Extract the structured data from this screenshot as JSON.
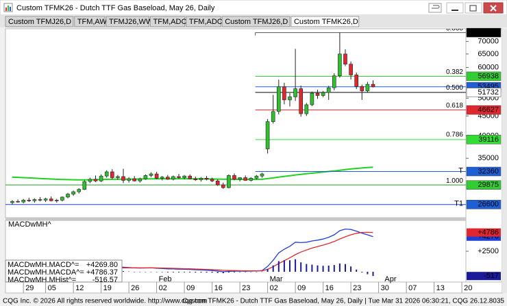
{
  "window": {
    "title": "Custom TFMK26 - Dutch TTF Gas Baseload, May 26, Daily",
    "tabs": [
      "Custom TFMJ26,D",
      "TFM,AW",
      "TFMJ26,WW",
      "TFM,ADC",
      "TFM,ADC",
      "Custom TFMJ26,D",
      "Custom TFMK26,D"
    ],
    "active_tab": 6
  },
  "status": {
    "left": "CQG Inc. © 2026 All rights reserved worldwide. http://www.cqg.com",
    "right": "Custom TFMK26 - Dutch TTF Gas Baseload, May 26, Daily | Tue Mar 31 2026 06:30:21, CQG 26.12.8035"
  },
  "chart_data": [
    {
      "type": "candlestick",
      "log": true,
      "x": [
        "Dec 23",
        "Dec 24",
        "Dec 29",
        "Dec 30",
        "Dec 31",
        "Jan 02",
        "Jan 05",
        "Jan 06",
        "Jan 07",
        "Jan 08",
        "Jan 09",
        "Jan 12",
        "Jan 13",
        "Jan 14",
        "Jan 15",
        "Jan 16",
        "Jan 19",
        "Jan 20",
        "Jan 21",
        "Jan 22",
        "Jan 23",
        "Jan 26",
        "Jan 27",
        "Jan 28",
        "Jan 29",
        "Jan 30",
        "Feb 02",
        "Feb 03",
        "Feb 04",
        "Feb 05",
        "Feb 06",
        "Feb 09",
        "Feb 10",
        "Feb 11",
        "Feb 12",
        "Feb 13",
        "Feb 16",
        "Feb 17",
        "Feb 18",
        "Feb 19",
        "Feb 20",
        "Feb 23",
        "Feb 24",
        "Feb 25",
        "Feb 26",
        "Feb 27",
        "Mar 02",
        "Mar 03",
        "Mar 04",
        "Mar 05",
        "Mar 06",
        "Mar 09",
        "Mar 10",
        "Mar 11",
        "Mar 12",
        "Mar 13",
        "Mar 16",
        "Mar 17",
        "Mar 18",
        "Mar 19",
        "Mar 20",
        "Mar 23",
        "Mar 24",
        "Mar 25",
        "Mar 26",
        "Mar 27"
      ],
      "open": [
        26900,
        27100,
        27000,
        27300,
        27200,
        27400,
        27300,
        27500,
        27200,
        27300,
        27800,
        28300,
        28700,
        29100,
        30500,
        30900,
        30600,
        31500,
        32300,
        31200,
        31400,
        30700,
        31000,
        30600,
        31000,
        31600,
        31900,
        31100,
        31300,
        30900,
        31400,
        31200,
        31500,
        31000,
        30800,
        31100,
        30900,
        30600,
        29900,
        29400,
        31600,
        30900,
        31200,
        30700,
        31100,
        31500,
        37000,
        43500,
        46200,
        53500,
        49500,
        50400,
        52900,
        45600,
        48100,
        51500,
        50800,
        51700,
        53200,
        57100,
        65000,
        61200,
        57400,
        53600,
        52200,
        54300
      ],
      "high": [
        27300,
        27400,
        27500,
        27700,
        27600,
        27800,
        27700,
        27900,
        27500,
        27900,
        28500,
        28900,
        29300,
        30700,
        31200,
        31600,
        31800,
        32600,
        32800,
        31700,
        32900,
        31300,
        31500,
        31200,
        31800,
        32200,
        32300,
        31500,
        31700,
        31600,
        31900,
        31700,
        31800,
        31400,
        31300,
        31500,
        31200,
        30900,
        30300,
        31800,
        32000,
        31300,
        31600,
        31300,
        31700,
        32100,
        44200,
        51000,
        55800,
        54800,
        51500,
        67000,
        53900,
        48600,
        52000,
        52600,
        52200,
        53800,
        58000,
        73790,
        66800,
        62200,
        58200,
        54200,
        55100,
        55600
      ],
      "low": [
        26600,
        26900,
        26800,
        27000,
        26900,
        27100,
        27000,
        27100,
        26900,
        27100,
        27600,
        28000,
        28400,
        29000,
        30200,
        30400,
        30400,
        31200,
        30900,
        30800,
        30200,
        30300,
        30500,
        30300,
        30800,
        31300,
        30900,
        30700,
        30800,
        30700,
        31000,
        30900,
        30900,
        30600,
        30500,
        30700,
        30400,
        29700,
        29200,
        29300,
        30700,
        30500,
        30600,
        30500,
        30900,
        31200,
        36000,
        43000,
        45400,
        48200,
        47600,
        49200,
        44800,
        45000,
        47700,
        49800,
        50300,
        49500,
        52400,
        56500,
        60500,
        55900,
        52800,
        49500,
        51800,
        53300
      ],
      "close": [
        27100,
        27000,
        27300,
        27200,
        27400,
        27300,
        27500,
        27200,
        27300,
        27800,
        28300,
        28700,
        29100,
        30500,
        30900,
        30600,
        31500,
        32300,
        31200,
        31400,
        30700,
        31000,
        30600,
        31000,
        31600,
        31900,
        31100,
        31300,
        30900,
        31400,
        31200,
        31500,
        31000,
        30800,
        31100,
        30900,
        30600,
        29900,
        29400,
        31600,
        30900,
        31200,
        30700,
        31100,
        31500,
        31900,
        43500,
        46200,
        53500,
        49500,
        50400,
        52900,
        45600,
        48100,
        51500,
        50800,
        51700,
        53200,
        57100,
        65000,
        61200,
        57400,
        53600,
        52200,
        54300,
        53500
      ],
      "up_color": "#2fbf2f",
      "down_color": "#e0262e",
      "overlays": [
        {
          "type": "line",
          "color": "#1ed21e",
          "values": [
            31300,
            31250,
            31200,
            31150,
            31100,
            31050,
            31000,
            30950,
            30900,
            30860,
            30830,
            30810,
            30800,
            30800,
            30810,
            30830,
            30850,
            30880,
            30900,
            30910,
            30920,
            30930,
            30940,
            30950,
            30960,
            30970,
            30980,
            30990,
            31000,
            31000,
            31000,
            31000,
            30990,
            30980,
            30970,
            30960,
            30950,
            30940,
            30920,
            30910,
            30900,
            30890,
            30880,
            30880,
            30890,
            30900,
            31020,
            31150,
            31300,
            31440,
            31560,
            31700,
            31820,
            31930,
            32040,
            32150,
            32250,
            32360,
            32470,
            32590,
            32730,
            32850,
            32950,
            33040,
            33120,
            33200
          ]
        }
      ],
      "ylim": [
        24600,
        75500
      ],
      "yticks": [
        35000,
        40000,
        45000,
        50000,
        60000,
        65000,
        70000
      ],
      "xticks": [
        {
          "value": "Dec 29",
          "label": "29"
        },
        {
          "value": "Jan 05",
          "label": "05"
        },
        {
          "value": "Jan 12",
          "label": "12"
        },
        {
          "value": "Jan 19",
          "label": "19"
        },
        {
          "value": "Jan 26",
          "label": "26"
        },
        {
          "value": "Feb 02",
          "label": "02"
        },
        {
          "value": "Feb 09",
          "label": "09"
        },
        {
          "value": "Feb 16",
          "label": "16"
        },
        {
          "value": "Feb 23",
          "label": "23"
        },
        {
          "value": "Mar 02",
          "label": "02"
        },
        {
          "value": "Mar 09",
          "label": "09"
        },
        {
          "value": "Mar 16",
          "label": "16"
        },
        {
          "value": "Mar 23",
          "label": "23"
        },
        {
          "value": "Mar 30",
          "label": "30"
        },
        {
          "value": "Apr 07",
          "label": "07"
        },
        {
          "value": "Apr 13",
          "label": "13"
        },
        {
          "value": "Apr 20",
          "label": "20"
        }
      ],
      "month_labels": [
        {
          "value": "Feb 02",
          "label": "Feb"
        },
        {
          "value": "Mar 02",
          "label": "Mar"
        },
        {
          "value": "Apr 01",
          "label": "Apr"
        }
      ],
      "levels": [
        {
          "value": 73790,
          "color": "#000000",
          "text_color": "#ffffff",
          "line_color": "#555555"
        },
        {
          "value": 56938,
          "color": "#33cc33",
          "text_color": "#000000",
          "line_color": "#33cc33"
        },
        {
          "value": 53495,
          "color": "#1f5fd6",
          "text_color": "#ffffff",
          "line_color": "#1f5fd6"
        },
        {
          "value": 51732,
          "color": "#ffffff",
          "text_color": "#000000",
          "line_color": "#000000"
        },
        {
          "value": 46627,
          "color": "#e0262e",
          "text_color": "#ffffff",
          "line_color": "#e0262e"
        },
        {
          "value": 39116,
          "color": "#33dd33",
          "text_color": "#000000",
          "line_color": "#33dd33"
        },
        {
          "value": 32360,
          "color": "#1f5fd6",
          "text_color": "#ffffff",
          "line_color": "#1f5fd6",
          "tag": "T"
        },
        {
          "value": 29875,
          "color": "#33cc33",
          "text_color": "#000000",
          "line_color": "#1ea01e",
          "full": true
        },
        {
          "value": 26600,
          "color": "#1f5fd6",
          "text_color": "#ffffff",
          "line_color": "#1f3fd6",
          "tag": "T1",
          "full": true
        }
      ],
      "fib": {
        "high": 73790,
        "low": 29875,
        "levels": [
          {
            "value": 0,
            "label": "0.000"
          },
          {
            "value": 0.382,
            "label": "0.382"
          },
          {
            "value": 0.5,
            "label": "0.500"
          },
          {
            "value": 0.618,
            "label": "0.618"
          },
          {
            "value": 0.786,
            "label": "0.786"
          },
          {
            "value": 1,
            "label": "1.000"
          }
        ]
      }
    },
    {
      "type": "macd",
      "title": "MACDwMH^",
      "ylim": [
        -1250,
        6250
      ],
      "yticks": [
        {
          "value": 2500,
          "label": "+2500"
        }
      ],
      "series": [
        {
          "name": "MACDwMH.MACD^=",
          "type": "line",
          "color": "#1f3fd6",
          "value_label": "+4269.80",
          "marker_label": "+4270",
          "values": [
            -150,
            -140,
            -125,
            -115,
            -100,
            -90,
            -80,
            -70,
            -60,
            -35,
            10,
            70,
            140,
            300,
            420,
            480,
            560,
            660,
            640,
            630,
            560,
            520,
            470,
            450,
            460,
            480,
            430,
            400,
            350,
            340,
            320,
            310,
            280,
            240,
            220,
            190,
            150,
            80,
            0,
            60,
            70,
            80,
            70,
            80,
            100,
            140,
            650,
            1400,
            2300,
            2750,
            3100,
            3600,
            3550,
            3600,
            3750,
            3850,
            3980,
            4200,
            4500,
            5000,
            5200,
            5150,
            4950,
            4700,
            4500,
            4269.8
          ]
        },
        {
          "name": "MACDwMH.MACDA^=",
          "type": "line",
          "color": "#e0262e",
          "value_label": "+4786.37",
          "marker_label": "+4786",
          "values": [
            -100,
            -108,
            -111,
            -112,
            -110,
            -106,
            -101,
            -95,
            -88,
            -78,
            -60,
            -34,
            1,
            61,
            133,
            202,
            273,
            351,
            409,
            453,
            475,
            484,
            481,
            475,
            472,
            474,
            465,
            452,
            432,
            413,
            395,
            378,
            358,
            334,
            311,
            287,
            260,
            224,
            179,
            155,
            138,
            126,
            115,
            108,
            107,
            114,
            300,
            620,
            1000,
            1350,
            1700,
            2080,
            2400,
            2650,
            2880,
            3070,
            3250,
            3450,
            3680,
            3990,
            4260,
            4500,
            4680,
            4780,
            4800,
            4786.37
          ]
        },
        {
          "name": "MACDwMH.MHist^=",
          "type": "bar",
          "color": "#1a1a9a",
          "value_label": "-516.57",
          "marker_label": "-517",
          "values": [
            -50,
            -32,
            -14,
            -3,
            10,
            16,
            21,
            25,
            28,
            43,
            70,
            104,
            139,
            239,
            287,
            278,
            287,
            309,
            231,
            177,
            85,
            36,
            -11,
            -25,
            -12,
            6,
            -35,
            -52,
            -82,
            -73,
            -75,
            -68,
            -78,
            -94,
            -91,
            -97,
            -110,
            -144,
            -179,
            -95,
            -68,
            -46,
            -45,
            -28,
            -7,
            26,
            350,
            780,
            1300,
            1400,
            1400,
            1520,
            1150,
            950,
            870,
            780,
            730,
            750,
            820,
            1010,
            940,
            650,
            270,
            -80,
            -300,
            -516.57
          ]
        }
      ]
    }
  ]
}
